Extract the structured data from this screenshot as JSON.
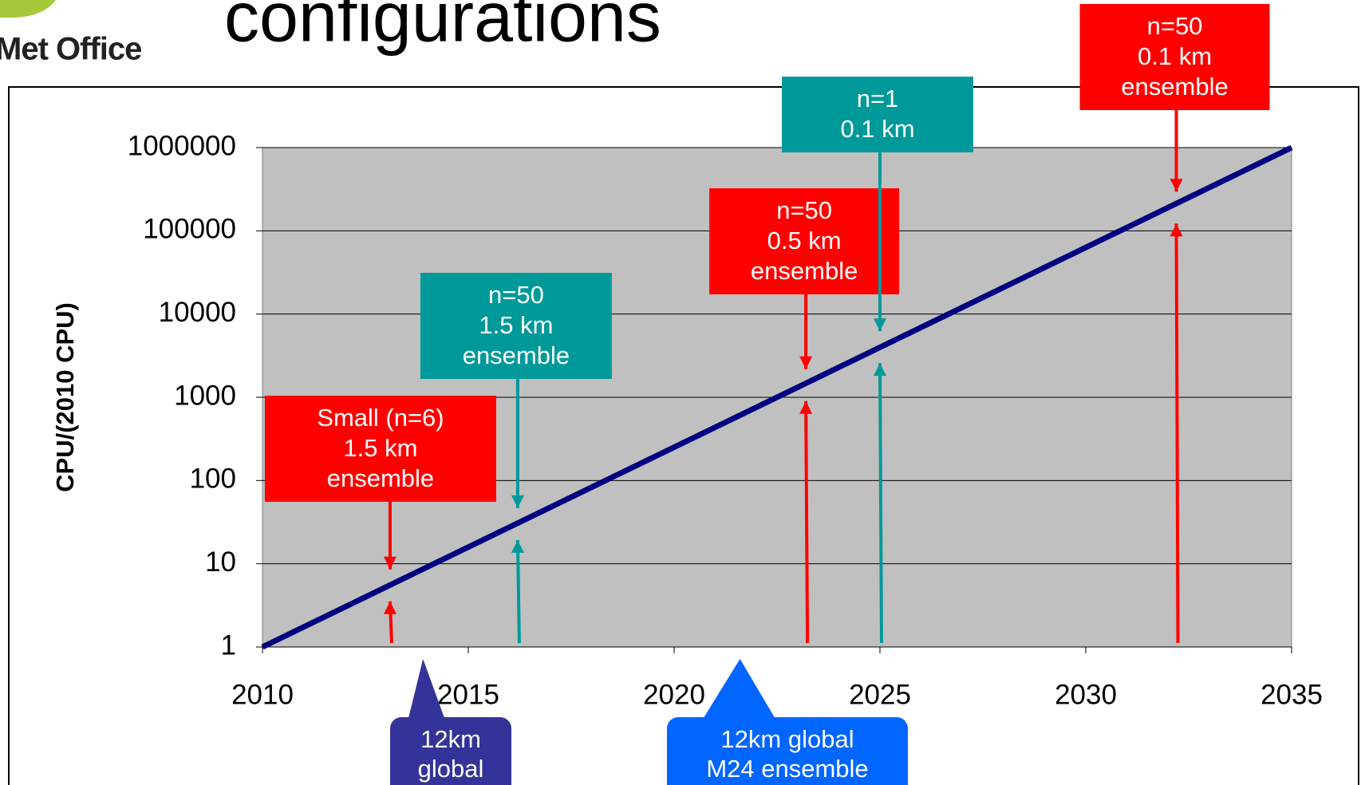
{
  "logo": "Met Office",
  "chart_data": {
    "type": "line",
    "title": "configurations",
    "y_label": "CPU/(2010 CPU)",
    "x": [
      2010,
      2035
    ],
    "values": [
      1,
      1000000
    ],
    "color": "#000080",
    "xlim": [
      2010,
      2035
    ],
    "xticks": [
      2010,
      2015,
      2020,
      2025,
      2030,
      2035
    ],
    "ylim": [
      1,
      1000000
    ],
    "yticks": [
      1,
      10,
      100,
      1000,
      10000,
      100000,
      1000000
    ],
    "log_y": true,
    "grid": true,
    "annotations": [
      {
        "text": [
          "Small (n=6)",
          "1.5 km",
          "ensemble"
        ],
        "x": 2013.1,
        "y": 5.5,
        "color": "#ff0000"
      },
      {
        "text": [
          "n=50",
          "1.5 km",
          "ensemble"
        ],
        "x": 2016.2,
        "y": 30,
        "color": "#009999"
      },
      {
        "text": [
          "n=50",
          "0.5 km",
          "ensemble"
        ],
        "x": 2023.2,
        "y": 1400,
        "color": "#ff0000"
      },
      {
        "text": [
          "n=1",
          "0.1 km"
        ],
        "x": 2025,
        "y": 4000,
        "color": "#009999"
      },
      {
        "text": [
          "n=50",
          "0.1 km",
          "ensemble"
        ],
        "x": 2032.2,
        "y": 190000,
        "color": "#ff0000"
      }
    ],
    "callouts": [
      {
        "text": [
          "12km",
          "global"
        ],
        "x": 2013.9,
        "color": "#333399"
      },
      {
        "text": [
          "12km global",
          "M24 ensemble"
        ],
        "x": 2021.6,
        "color": "#0066ff"
      }
    ]
  }
}
